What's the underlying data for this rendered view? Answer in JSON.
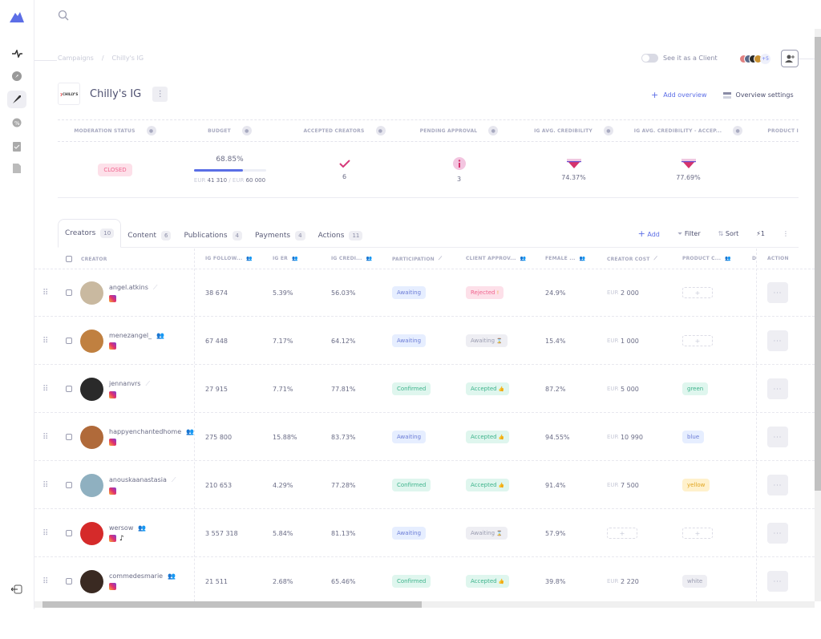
{
  "sidebar": {
    "items": [
      {
        "name": "activity",
        "active": false
      },
      {
        "name": "discover",
        "active": false
      },
      {
        "name": "campaigns",
        "active": true
      },
      {
        "name": "discounts",
        "active": false
      },
      {
        "name": "tasks",
        "active": false
      },
      {
        "name": "documents",
        "active": false
      }
    ]
  },
  "breadcrumb": {
    "root": "Campaigns",
    "sep": "/",
    "current": "Chilly's IG"
  },
  "header": {
    "see_as_client": "See it as a Client",
    "members_more": "+5",
    "logo_text": "CHILLY'S",
    "title": "Chilly's IG",
    "add_overview": "Add overview",
    "overview_settings": "Overview settings"
  },
  "kpis": {
    "headers": [
      "MODERATION STATUS",
      "BUDGET",
      "ACCEPTED CREATORS",
      "PENDING APPROVAL",
      "IG AVG. CREDIBILITY",
      "IG AVG. CREDIBILITY - ACCEP...",
      "PRODUCT I"
    ],
    "moderation_status": "CLOSED",
    "budget_percent": "68.85%",
    "budget_percent_value": 68.85,
    "budget_spent_cur": "EUR",
    "budget_spent": "41 310",
    "budget_sep": "/",
    "budget_total_cur": "EUR",
    "budget_total": "60 000",
    "accepted_creators": "6",
    "pending_approval": "3",
    "ig_avg_credibility": "74.37%",
    "ig_avg_credibility_accepted": "77.69%"
  },
  "tabs": [
    {
      "label": "Creators",
      "count": "10"
    },
    {
      "label": "Content",
      "count": "6"
    },
    {
      "label": "Publications",
      "count": "4"
    },
    {
      "label": "Payments",
      "count": "4"
    },
    {
      "label": "Actions",
      "count": "11"
    }
  ],
  "toolbar": {
    "add": "Add",
    "filter": "Filter",
    "sort": "Sort",
    "automation_count": "1"
  },
  "columns": [
    "CREATOR",
    "IG FOLLOW...",
    "IG ER",
    "IG CREDI...",
    "PARTICIPATION",
    "CLIENT APPROV...",
    "FEMALE ...",
    "CREATOR COST",
    "PRODUCT C...",
    "D",
    "ACTION"
  ],
  "rows": [
    {
      "name": "angel.atkins",
      "source": "manual",
      "followers": "38 674",
      "er": "5.39%",
      "cred": "56.03%",
      "participation": "Awaiting",
      "approval": "Rejected",
      "approval_icon": "!",
      "female": "24.9%",
      "cost_cur": "EUR",
      "cost": "2 000",
      "product": "",
      "tiktok": false,
      "avatar": "#c9b9a0"
    },
    {
      "name": "menezangel_",
      "source": "team",
      "followers": "67 448",
      "er": "7.17%",
      "cred": "64.12%",
      "participation": "Awaiting",
      "approval": "Awaiting",
      "approval_icon": "⌛",
      "female": "15.4%",
      "cost_cur": "EUR",
      "cost": "1 000",
      "product": "",
      "tiktok": false,
      "avatar": "#c08040"
    },
    {
      "name": "jennanvrs",
      "source": "manual",
      "followers": "27 915",
      "er": "7.71%",
      "cred": "77.81%",
      "participation": "Confirmed",
      "approval": "Accepted",
      "approval_icon": "👍",
      "female": "87.2%",
      "cost_cur": "EUR",
      "cost": "5 000",
      "product": "green",
      "tiktok": false,
      "avatar": "#2a2a2a"
    },
    {
      "name": "happyenchantedhome",
      "source": "team",
      "followers": "275 800",
      "er": "15.88%",
      "cred": "83.73%",
      "participation": "Awaiting",
      "approval": "Accepted",
      "approval_icon": "👍",
      "female": "94.55%",
      "cost_cur": "EUR",
      "cost": "10 990",
      "product": "blue",
      "tiktok": false,
      "avatar": "#b06a3a"
    },
    {
      "name": "anouskaanastasia",
      "source": "manual",
      "followers": "210 653",
      "er": "4.29%",
      "cred": "77.28%",
      "participation": "Confirmed",
      "approval": "Accepted",
      "approval_icon": "👍",
      "female": "91.4%",
      "cost_cur": "EUR",
      "cost": "7 500",
      "product": "yellow",
      "tiktok": false,
      "avatar": "#8fb0c0"
    },
    {
      "name": "wersow",
      "source": "team",
      "followers": "3 557 318",
      "er": "5.84%",
      "cred": "81.13%",
      "participation": "Awaiting",
      "approval": "Awaiting",
      "approval_icon": "⌛",
      "female": "57.9%",
      "cost_cur": "",
      "cost": "",
      "product": "",
      "tiktok": true,
      "avatar": "#d52a2a"
    },
    {
      "name": "commedesmarie",
      "source": "team",
      "followers": "21 511",
      "er": "2.68%",
      "cred": "65.46%",
      "participation": "Confirmed",
      "approval": "Accepted",
      "approval_icon": "👍",
      "female": "39.8%",
      "cost_cur": "EUR",
      "cost": "2 220",
      "product": "white",
      "tiktok": false,
      "avatar": "#3a2a22"
    }
  ],
  "colors": {
    "accent": "#5c6ee6",
    "closed": "#f0658f",
    "team_icon": "#f59e0b"
  }
}
